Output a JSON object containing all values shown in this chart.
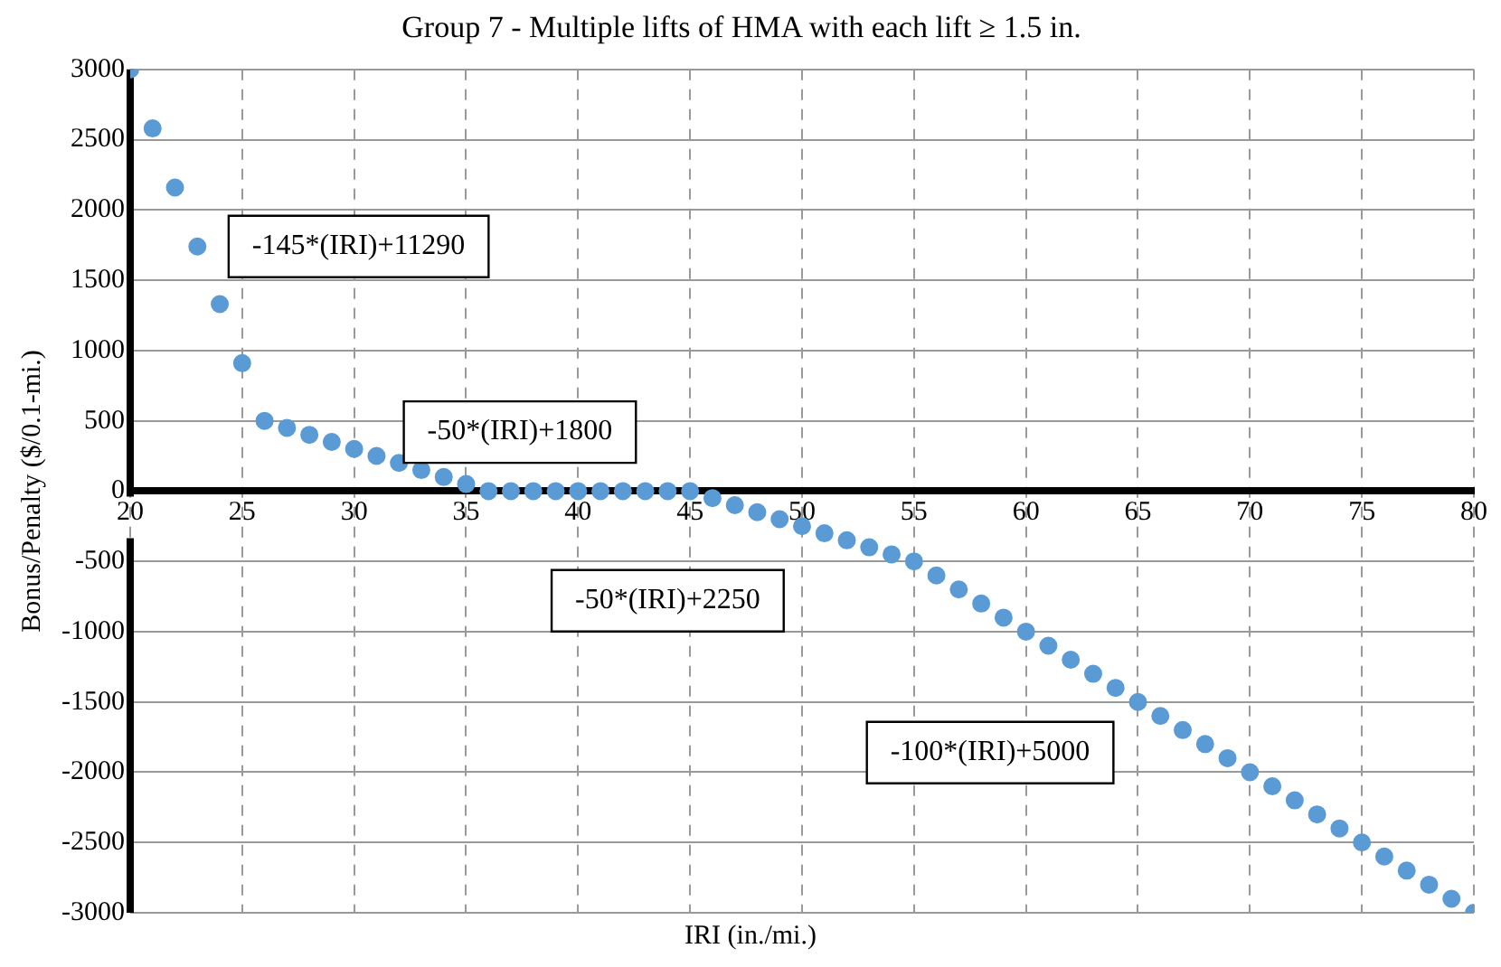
{
  "chart_data": {
    "type": "scatter",
    "title": "Group 7 - Multiple lifts of HMA with each lift ≥ 1.5 in.",
    "xlabel": "IRI (in./mi.)",
    "ylabel": "Bonus/Penalty ($/0.1-mi.)",
    "x": [
      20,
      21,
      22,
      23,
      24,
      25,
      26,
      27,
      28,
      29,
      30,
      31,
      32,
      33,
      34,
      35,
      36,
      37,
      38,
      39,
      40,
      41,
      42,
      43,
      44,
      45,
      46,
      47,
      48,
      49,
      50,
      51,
      52,
      53,
      54,
      55,
      56,
      57,
      58,
      59,
      60,
      61,
      62,
      63,
      64,
      65,
      66,
      67,
      68,
      69,
      70,
      71,
      72,
      73,
      74,
      75,
      76,
      77,
      78,
      79,
      80
    ],
    "values": [
      3000,
      2580,
      2160,
      1740,
      1330,
      910,
      500,
      450,
      400,
      350,
      300,
      250,
      200,
      150,
      100,
      50,
      0,
      0,
      0,
      0,
      0,
      0,
      0,
      0,
      0,
      0,
      -50,
      -100,
      -150,
      -200,
      -250,
      -300,
      -350,
      -400,
      -450,
      -500,
      -600,
      -700,
      -800,
      -900,
      -1000,
      -1100,
      -1200,
      -1300,
      -1400,
      -1500,
      -1600,
      -1700,
      -1800,
      -1900,
      -2000,
      -2100,
      -2200,
      -2300,
      -2400,
      -2500,
      -2600,
      -2700,
      -2800,
      -2900,
      -3000
    ],
    "color": "#5b9bd5",
    "marker": "circle",
    "xlim": [
      20,
      80
    ],
    "xticks": [
      20,
      25,
      30,
      35,
      40,
      45,
      50,
      55,
      60,
      65,
      70,
      75,
      80
    ],
    "ylim": [
      -3000,
      3000
    ],
    "yticks": [
      -3000,
      -2500,
      -2000,
      -1500,
      -1000,
      -500,
      0,
      500,
      1000,
      1500,
      2000,
      2500,
      3000
    ],
    "grid": true,
    "legend": false,
    "annotations": [
      "-145*(IRI)+11290",
      "-50*(IRI)+1800",
      "-50*(IRI)+2250",
      "-100*(IRI)+5000"
    ]
  }
}
